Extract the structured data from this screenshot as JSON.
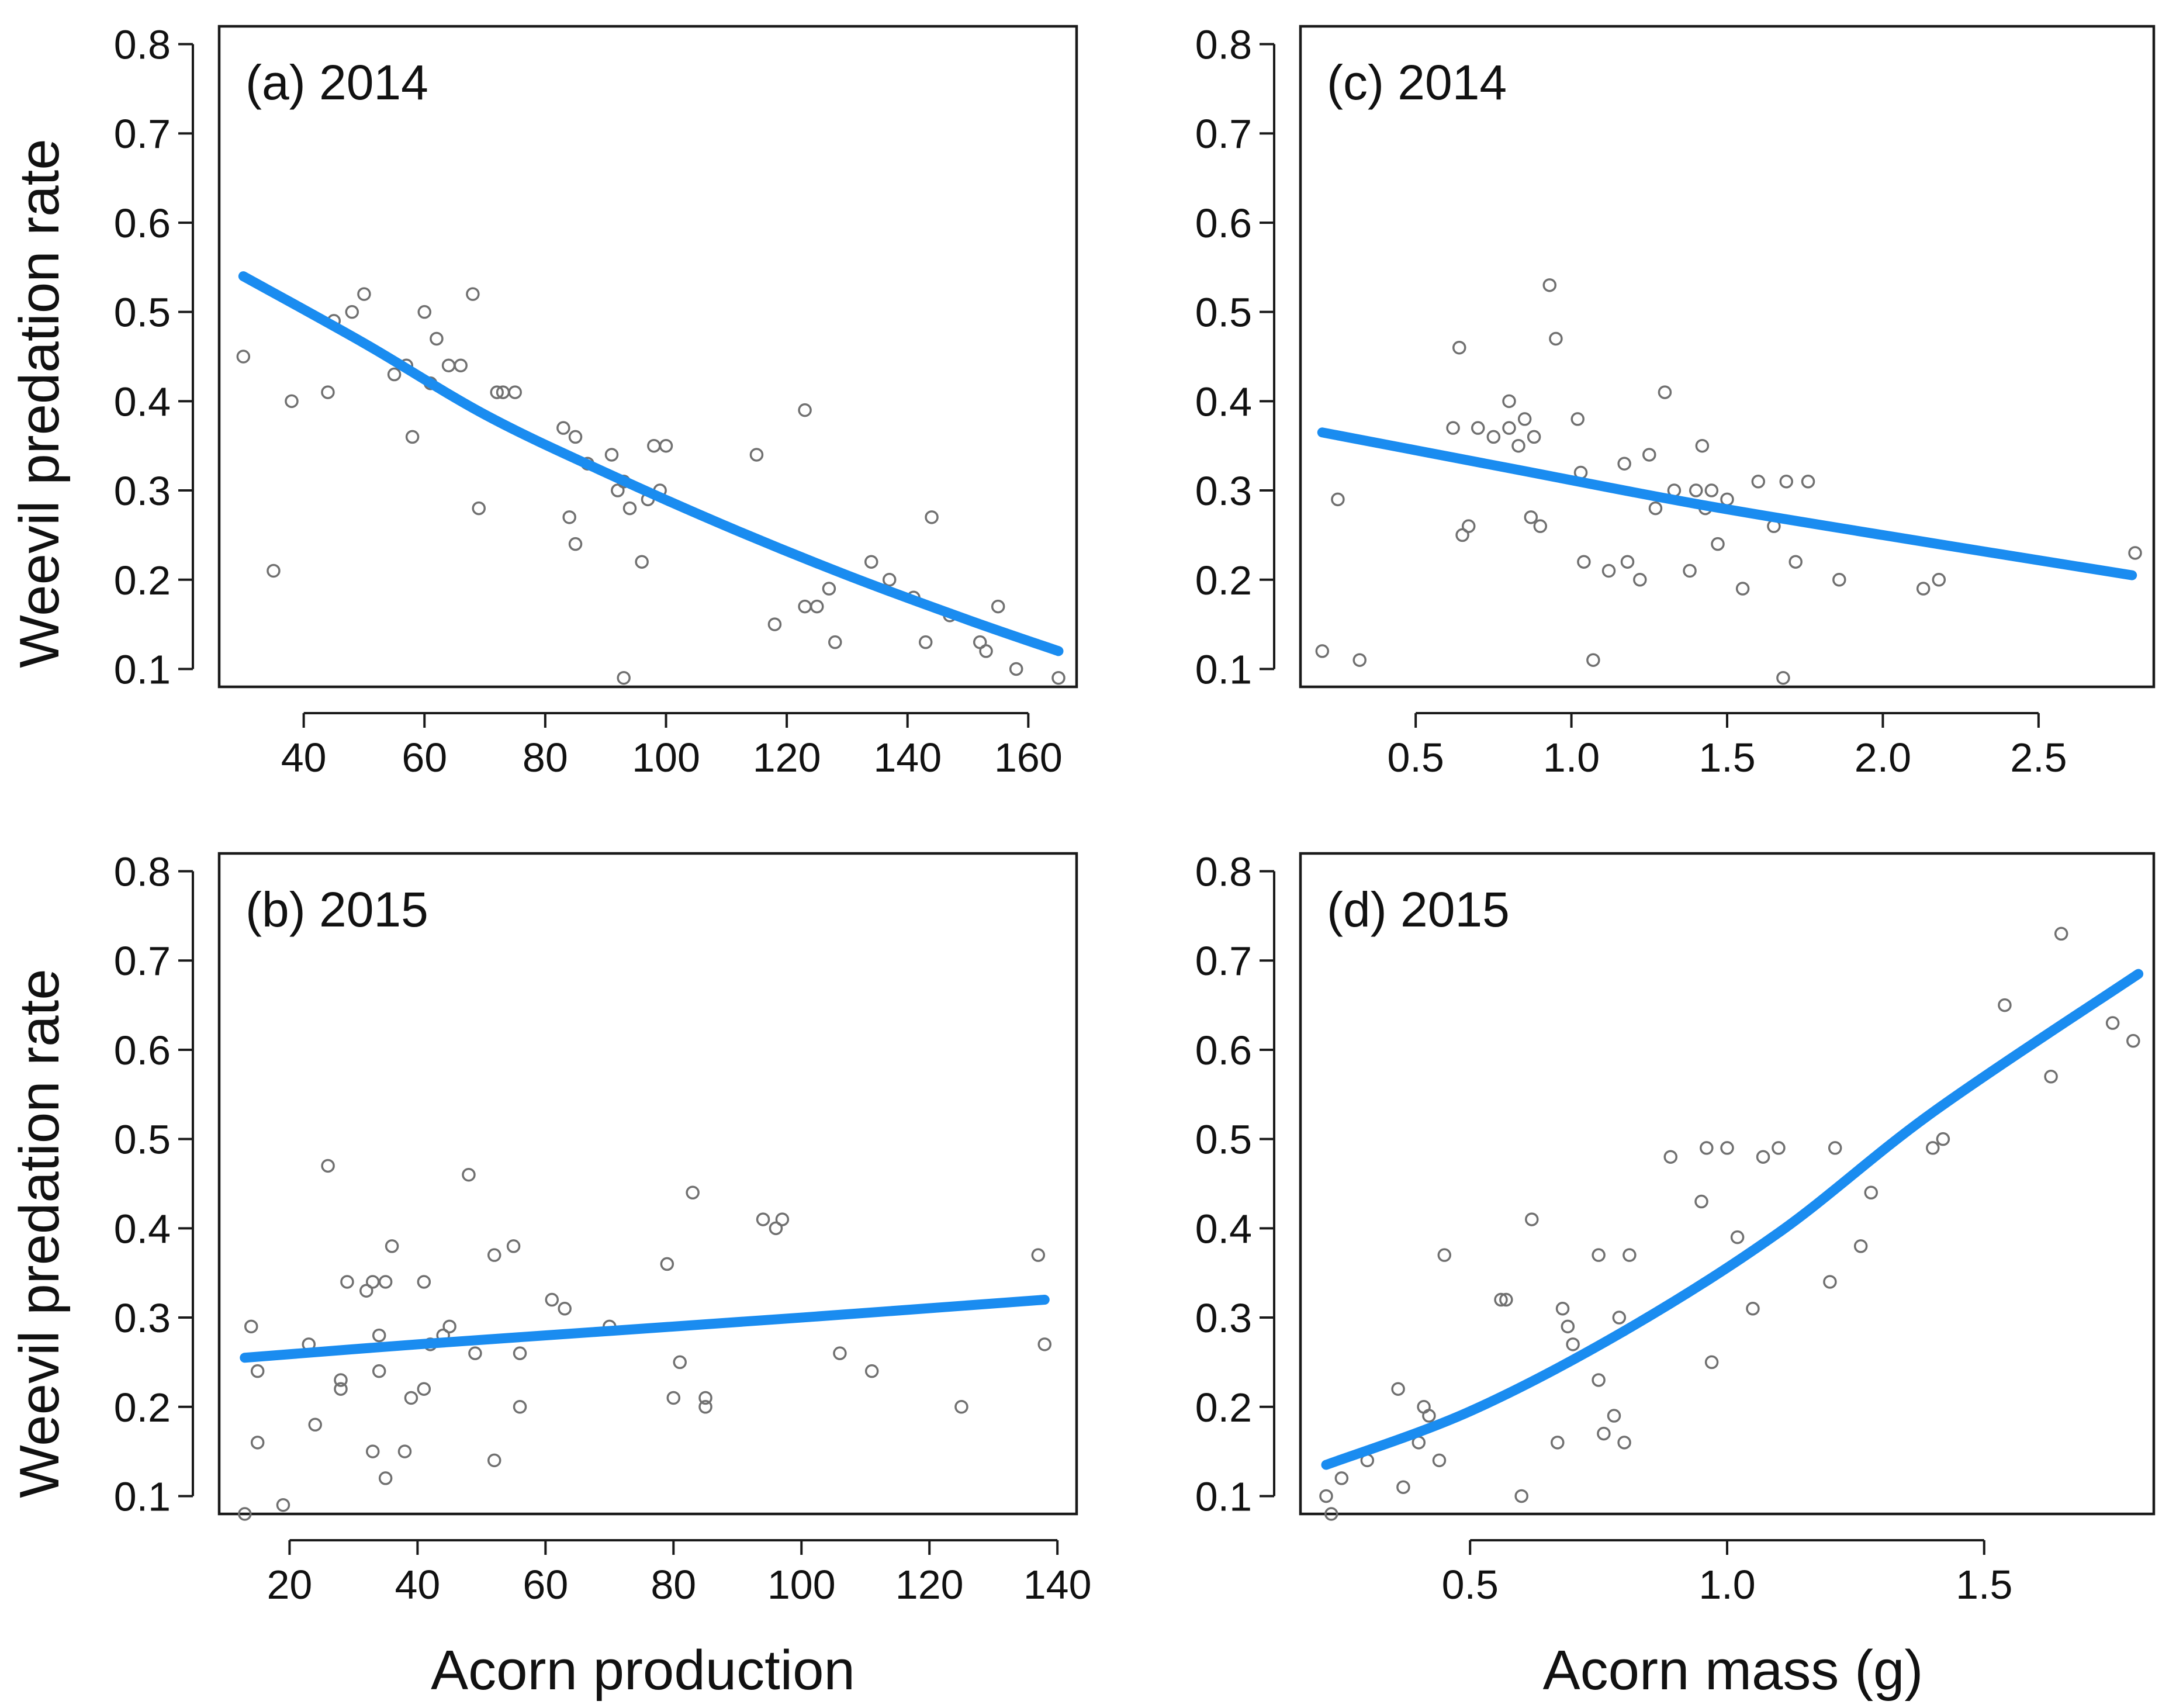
{
  "colors": {
    "fit_line": "#1a8cf0",
    "points": "#707070",
    "axes": "#1a1a1a"
  },
  "ylabel": "Weevil predation rate",
  "xlabel_left": "Acorn production",
  "xlabel_right": "Acorn mass (g)",
  "chart_data": [
    {
      "id": "a",
      "type": "scatter",
      "title": "(a) 2014",
      "xlabel": "Acorn production",
      "ylabel": "Weevil predation rate",
      "xlim": [
        26,
        168
      ],
      "ylim": [
        0.08,
        0.82
      ],
      "xticks": [
        40,
        60,
        80,
        100,
        120,
        140,
        160
      ],
      "xtick_labels": [
        "40",
        "60",
        "80",
        "100",
        "120",
        "140",
        "160"
      ],
      "yticks": [
        0.1,
        0.2,
        0.3,
        0.4,
        0.5,
        0.6,
        0.7,
        0.8
      ],
      "ytick_labels": [
        "0.1",
        "0.2",
        "0.3",
        "0.4",
        "0.5",
        "0.6",
        "0.7",
        "0.8"
      ],
      "fit": {
        "x": [
          30,
          50,
          70,
          90,
          110,
          130,
          150,
          165
        ],
        "y": [
          0.54,
          0.465,
          0.385,
          0.32,
          0.26,
          0.205,
          0.155,
          0.12
        ]
      },
      "points": [
        [
          30,
          0.45
        ],
        [
          35,
          0.21
        ],
        [
          38,
          0.4
        ],
        [
          44,
          0.41
        ],
        [
          45,
          0.49
        ],
        [
          48,
          0.5
        ],
        [
          50,
          0.52
        ],
        [
          55,
          0.43
        ],
        [
          57,
          0.44
        ],
        [
          58,
          0.36
        ],
        [
          60,
          0.5
        ],
        [
          61,
          0.42
        ],
        [
          62,
          0.47
        ],
        [
          64,
          0.44
        ],
        [
          66,
          0.44
        ],
        [
          68,
          0.52
        ],
        [
          69,
          0.28
        ],
        [
          72,
          0.41
        ],
        [
          73,
          0.41
        ],
        [
          75,
          0.41
        ],
        [
          83,
          0.37
        ],
        [
          84,
          0.27
        ],
        [
          85,
          0.36
        ],
        [
          85,
          0.24
        ],
        [
          87,
          0.33
        ],
        [
          91,
          0.34
        ],
        [
          92,
          0.3
        ],
        [
          93,
          0.31
        ],
        [
          94,
          0.28
        ],
        [
          93,
          0.09
        ],
        [
          96,
          0.22
        ],
        [
          97,
          0.29
        ],
        [
          98,
          0.35
        ],
        [
          99,
          0.3
        ],
        [
          100,
          0.35
        ],
        [
          115,
          0.34
        ],
        [
          118,
          0.15
        ],
        [
          123,
          0.39
        ],
        [
          123,
          0.17
        ],
        [
          125,
          0.17
        ],
        [
          127,
          0.19
        ],
        [
          128,
          0.13
        ],
        [
          134,
          0.22
        ],
        [
          137,
          0.2
        ],
        [
          141,
          0.18
        ],
        [
          143,
          0.13
        ],
        [
          144,
          0.27
        ],
        [
          147,
          0.16
        ],
        [
          152,
          0.13
        ],
        [
          153,
          0.12
        ],
        [
          155,
          0.17
        ],
        [
          158,
          0.1
        ],
        [
          165,
          0.09
        ]
      ]
    },
    {
      "id": "b",
      "type": "scatter",
      "title": "(b) 2015",
      "xlabel": "Acorn production",
      "ylabel": "Weevil predation rate",
      "xlim": [
        9,
        143
      ],
      "ylim": [
        0.08,
        0.82
      ],
      "xticks": [
        20,
        40,
        60,
        80,
        100,
        120,
        140
      ],
      "xtick_labels": [
        "20",
        "40",
        "60",
        "80",
        "100",
        "120",
        "140"
      ],
      "yticks": [
        0.1,
        0.2,
        0.3,
        0.4,
        0.5,
        0.6,
        0.7,
        0.8
      ],
      "ytick_labels": [
        "0.1",
        "0.2",
        "0.3",
        "0.4",
        "0.5",
        "0.6",
        "0.7",
        "0.8"
      ],
      "fit": {
        "x": [
          13,
          40,
          70,
          100,
          138
        ],
        "y": [
          0.255,
          0.27,
          0.285,
          0.3,
          0.32
        ]
      },
      "points": [
        [
          13,
          0.08
        ],
        [
          14,
          0.29
        ],
        [
          15,
          0.24
        ],
        [
          15,
          0.16
        ],
        [
          19,
          0.09
        ],
        [
          23,
          0.27
        ],
        [
          24,
          0.18
        ],
        [
          26,
          0.47
        ],
        [
          28,
          0.22
        ],
        [
          28,
          0.23
        ],
        [
          29,
          0.34
        ],
        [
          32,
          0.33
        ],
        [
          33,
          0.34
        ],
        [
          33,
          0.15
        ],
        [
          34,
          0.28
        ],
        [
          34,
          0.24
        ],
        [
          35,
          0.12
        ],
        [
          35,
          0.34
        ],
        [
          36,
          0.38
        ],
        [
          38,
          0.15
        ],
        [
          39,
          0.21
        ],
        [
          41,
          0.22
        ],
        [
          41,
          0.34
        ],
        [
          42,
          0.27
        ],
        [
          44,
          0.28
        ],
        [
          45,
          0.29
        ],
        [
          48,
          0.46
        ],
        [
          49,
          0.26
        ],
        [
          52,
          0.37
        ],
        [
          52,
          0.14
        ],
        [
          55,
          0.38
        ],
        [
          56,
          0.26
        ],
        [
          56,
          0.2
        ],
        [
          61,
          0.32
        ],
        [
          63,
          0.31
        ],
        [
          70,
          0.29
        ],
        [
          79,
          0.36
        ],
        [
          80,
          0.21
        ],
        [
          81,
          0.25
        ],
        [
          83,
          0.44
        ],
        [
          85,
          0.2
        ],
        [
          85,
          0.21
        ],
        [
          94,
          0.41
        ],
        [
          96,
          0.4
        ],
        [
          97,
          0.41
        ],
        [
          106,
          0.26
        ],
        [
          111,
          0.24
        ],
        [
          125,
          0.2
        ],
        [
          137,
          0.37
        ],
        [
          138,
          0.27
        ]
      ]
    },
    {
      "id": "c",
      "type": "scatter",
      "title": "(c) 2014",
      "xlabel": "Acorn mass (g)",
      "ylabel": "Weevil predation rate",
      "xlim": [
        0.13,
        2.87
      ],
      "ylim": [
        0.08,
        0.82
      ],
      "xticks": [
        0.5,
        1.0,
        1.5,
        2.0,
        2.5
      ],
      "xtick_labels": [
        "0.5",
        "1.0",
        "1.5",
        "2.0",
        "2.5"
      ],
      "yticks": [
        0.1,
        0.2,
        0.3,
        0.4,
        0.5,
        0.6,
        0.7,
        0.8
      ],
      "ytick_labels": [
        "0.1",
        "0.2",
        "0.3",
        "0.4",
        "0.5",
        "0.6",
        "0.7",
        "0.8"
      ],
      "fit": {
        "x": [
          0.2,
          0.8,
          1.4,
          2.0,
          2.8
        ],
        "y": [
          0.365,
          0.325,
          0.285,
          0.25,
          0.205
        ]
      },
      "points": [
        [
          0.2,
          0.12
        ],
        [
          0.25,
          0.29
        ],
        [
          0.32,
          0.11
        ],
        [
          0.62,
          0.37
        ],
        [
          0.64,
          0.46
        ],
        [
          0.65,
          0.25
        ],
        [
          0.67,
          0.26
        ],
        [
          0.7,
          0.37
        ],
        [
          0.75,
          0.36
        ],
        [
          0.8,
          0.37
        ],
        [
          0.8,
          0.4
        ],
        [
          0.83,
          0.35
        ],
        [
          0.85,
          0.38
        ],
        [
          0.87,
          0.27
        ],
        [
          0.88,
          0.36
        ],
        [
          0.9,
          0.26
        ],
        [
          0.93,
          0.53
        ],
        [
          0.95,
          0.47
        ],
        [
          1.02,
          0.38
        ],
        [
          1.03,
          0.32
        ],
        [
          1.04,
          0.22
        ],
        [
          1.07,
          0.11
        ],
        [
          1.12,
          0.21
        ],
        [
          1.17,
          0.33
        ],
        [
          1.18,
          0.22
        ],
        [
          1.22,
          0.2
        ],
        [
          1.25,
          0.34
        ],
        [
          1.27,
          0.28
        ],
        [
          1.3,
          0.41
        ],
        [
          1.33,
          0.3
        ],
        [
          1.38,
          0.21
        ],
        [
          1.4,
          0.3
        ],
        [
          1.42,
          0.35
        ],
        [
          1.43,
          0.28
        ],
        [
          1.45,
          0.3
        ],
        [
          1.47,
          0.24
        ],
        [
          1.5,
          0.29
        ],
        [
          1.55,
          0.19
        ],
        [
          1.6,
          0.31
        ],
        [
          1.65,
          0.26
        ],
        [
          1.68,
          0.09
        ],
        [
          1.69,
          0.31
        ],
        [
          1.72,
          0.22
        ],
        [
          1.76,
          0.31
        ],
        [
          1.86,
          0.2
        ],
        [
          2.13,
          0.19
        ],
        [
          2.18,
          0.2
        ],
        [
          2.81,
          0.23
        ]
      ]
    },
    {
      "id": "d",
      "type": "scatter",
      "title": "(d) 2015",
      "xlabel": "Acorn mass (g)",
      "ylabel": "Weevil predation rate",
      "xlim": [
        0.17,
        1.83
      ],
      "ylim": [
        0.08,
        0.82
      ],
      "xticks": [
        0.5,
        1.0,
        1.5
      ],
      "xtick_labels": [
        "0.5",
        "1.0",
        "1.5"
      ],
      "yticks": [
        0.1,
        0.2,
        0.3,
        0.4,
        0.5,
        0.6,
        0.7,
        0.8
      ],
      "ytick_labels": [
        "0.1",
        "0.2",
        "0.3",
        "0.4",
        "0.5",
        "0.6",
        "0.7",
        "0.8"
      ],
      "fit": {
        "x": [
          0.22,
          0.5,
          0.8,
          1.1,
          1.4,
          1.8
        ],
        "y": [
          0.135,
          0.195,
          0.285,
          0.395,
          0.53,
          0.685
        ]
      },
      "points": [
        [
          0.22,
          0.1
        ],
        [
          0.23,
          0.08
        ],
        [
          0.25,
          0.12
        ],
        [
          0.3,
          0.14
        ],
        [
          0.36,
          0.22
        ],
        [
          0.37,
          0.11
        ],
        [
          0.4,
          0.16
        ],
        [
          0.41,
          0.2
        ],
        [
          0.42,
          0.19
        ],
        [
          0.44,
          0.14
        ],
        [
          0.45,
          0.37
        ],
        [
          0.56,
          0.32
        ],
        [
          0.57,
          0.32
        ],
        [
          0.6,
          0.1
        ],
        [
          0.62,
          0.41
        ],
        [
          0.67,
          0.16
        ],
        [
          0.68,
          0.31
        ],
        [
          0.69,
          0.29
        ],
        [
          0.7,
          0.27
        ],
        [
          0.75,
          0.37
        ],
        [
          0.75,
          0.23
        ],
        [
          0.76,
          0.17
        ],
        [
          0.78,
          0.19
        ],
        [
          0.79,
          0.3
        ],
        [
          0.8,
          0.16
        ],
        [
          0.81,
          0.37
        ],
        [
          0.89,
          0.48
        ],
        [
          0.95,
          0.43
        ],
        [
          0.96,
          0.49
        ],
        [
          0.97,
          0.25
        ],
        [
          1.0,
          0.49
        ],
        [
          1.02,
          0.39
        ],
        [
          1.05,
          0.31
        ],
        [
          1.07,
          0.48
        ],
        [
          1.1,
          0.49
        ],
        [
          1.2,
          0.34
        ],
        [
          1.21,
          0.49
        ],
        [
          1.26,
          0.38
        ],
        [
          1.28,
          0.44
        ],
        [
          1.4,
          0.49
        ],
        [
          1.42,
          0.5
        ],
        [
          1.54,
          0.65
        ],
        [
          1.63,
          0.57
        ],
        [
          1.65,
          0.73
        ],
        [
          1.75,
          0.63
        ],
        [
          1.79,
          0.61
        ]
      ]
    }
  ]
}
